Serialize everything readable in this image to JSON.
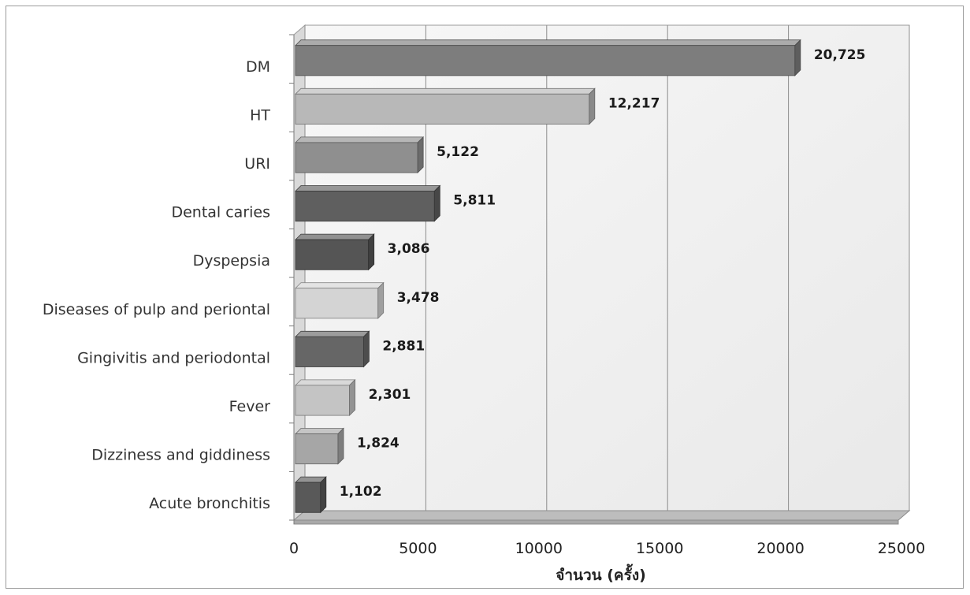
{
  "chart_data": {
    "type": "bar",
    "orientation": "horizontal",
    "categories": [
      "DM",
      "HT",
      "URI",
      "Dental caries",
      "Dyspepsia",
      "Diseases of pulp and periontal",
      "Gingivitis and periodontal",
      "Fever",
      "Dizziness and giddiness",
      "Acute bronchitis"
    ],
    "values": [
      20725,
      12217,
      5122,
      5811,
      3086,
      3478,
      2881,
      2301,
      1824,
      1102
    ],
    "value_labels": [
      "20,725",
      "12,217",
      "5,122",
      "5,811",
      "3,086",
      "3,478",
      "2,881",
      "2,301",
      "1,824",
      "1,102"
    ],
    "bar_colors": [
      "#7d7d7d",
      "#b8b8b8",
      "#8f8f8f",
      "#5f5f5f",
      "#555555",
      "#d4d4d4",
      "#666666",
      "#c4c4c4",
      "#a6a6a6",
      "#595959"
    ],
    "xlim": [
      0,
      25000
    ],
    "xticks": [
      0,
      5000,
      10000,
      15000,
      20000,
      25000
    ],
    "xtick_labels": [
      "0",
      "5000",
      "10000",
      "15000",
      "20000",
      "25000"
    ],
    "xlabel": "จำนวน (ครั้ง)",
    "ylabel": "",
    "title": "",
    "grid": true,
    "style": "3d"
  }
}
